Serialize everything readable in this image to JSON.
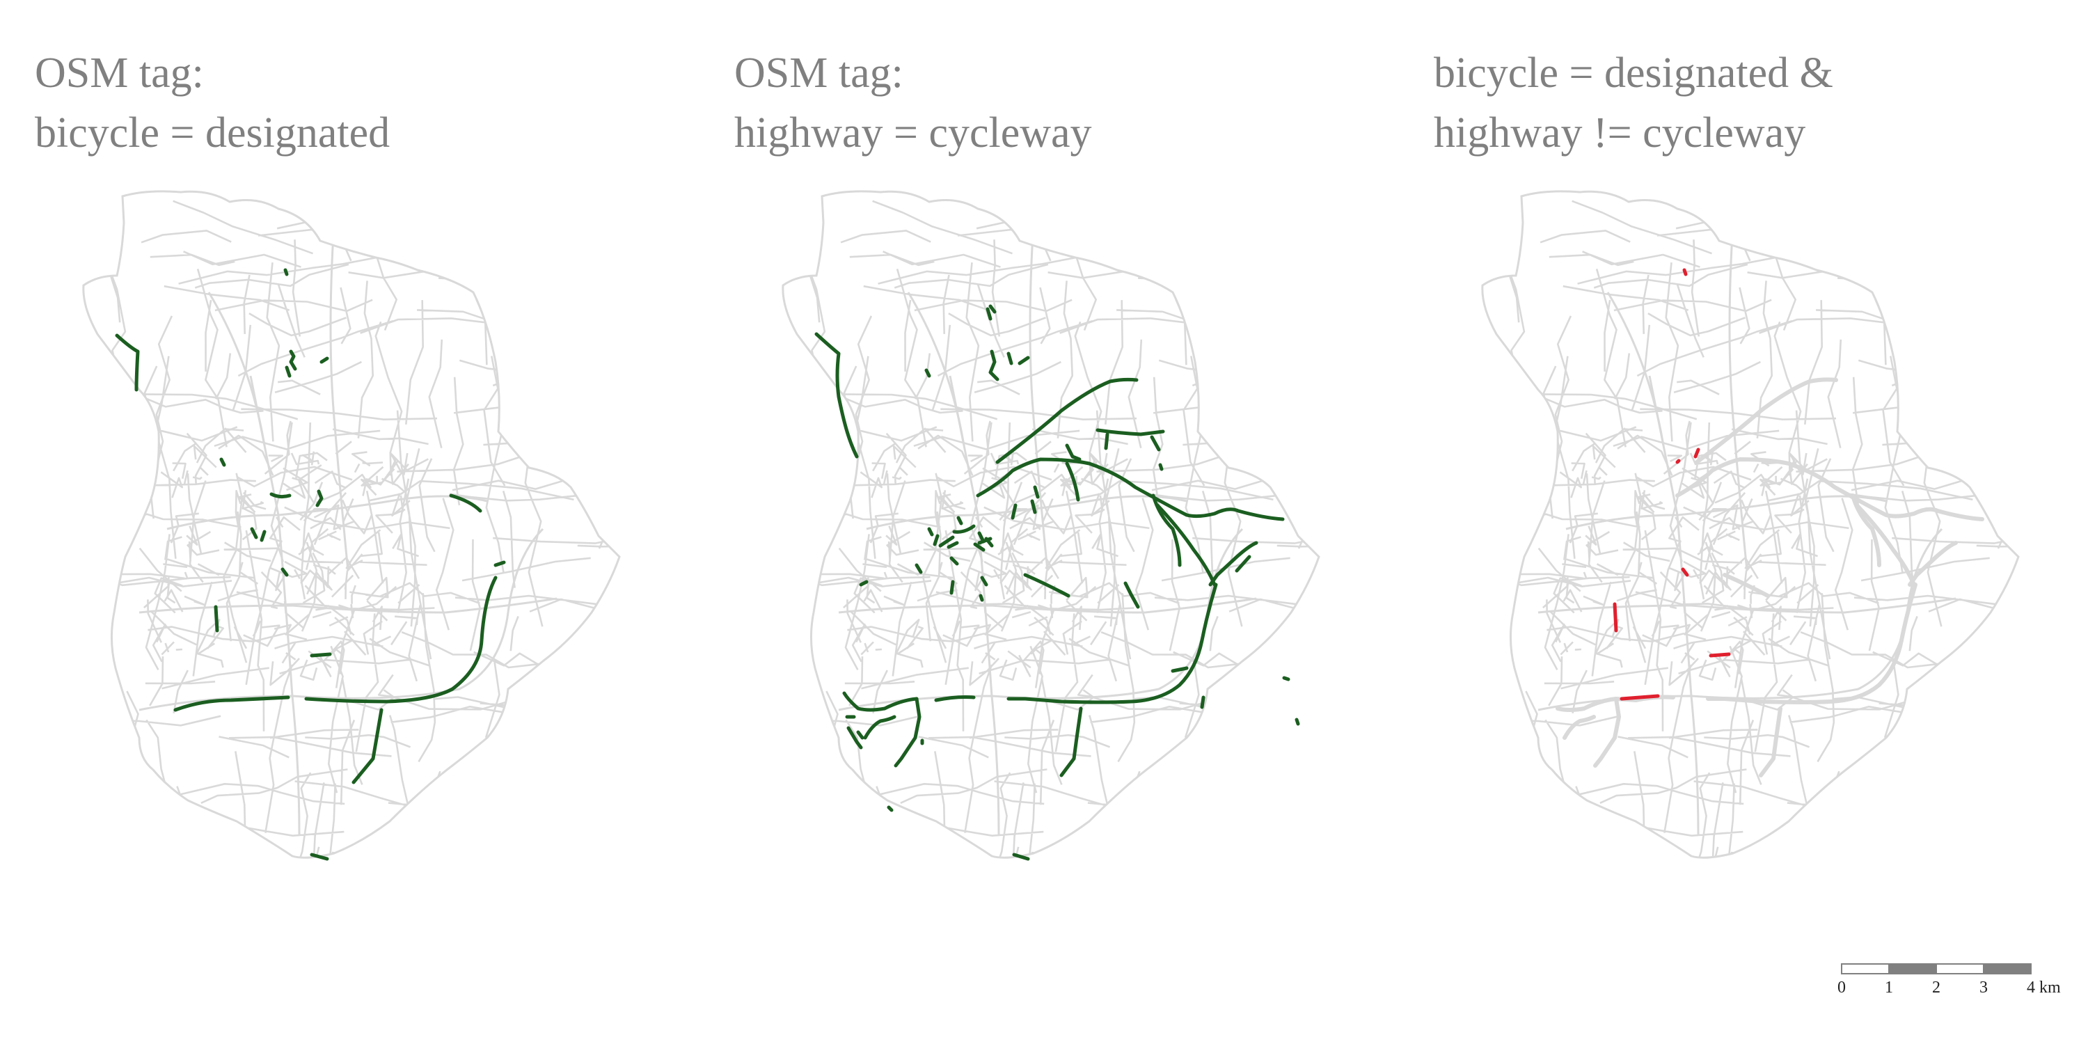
{
  "panels": [
    {
      "title_line1": "OSM tag:",
      "title_line2": "bicycle = designated",
      "highlight_color": "#1b5e20"
    },
    {
      "title_line1": "OSM tag:",
      "title_line2": "highway = cycleway",
      "highlight_color": "#1b5e20"
    },
    {
      "title_line1": "bicycle = designated &",
      "title_line2": "highway != cycleway",
      "highlight_color": "#e0202e"
    }
  ],
  "network_color": "#d9d9d9",
  "scale_bar": {
    "ticks": [
      "0",
      "1",
      "2",
      "3",
      "4"
    ],
    "unit": "km"
  }
}
